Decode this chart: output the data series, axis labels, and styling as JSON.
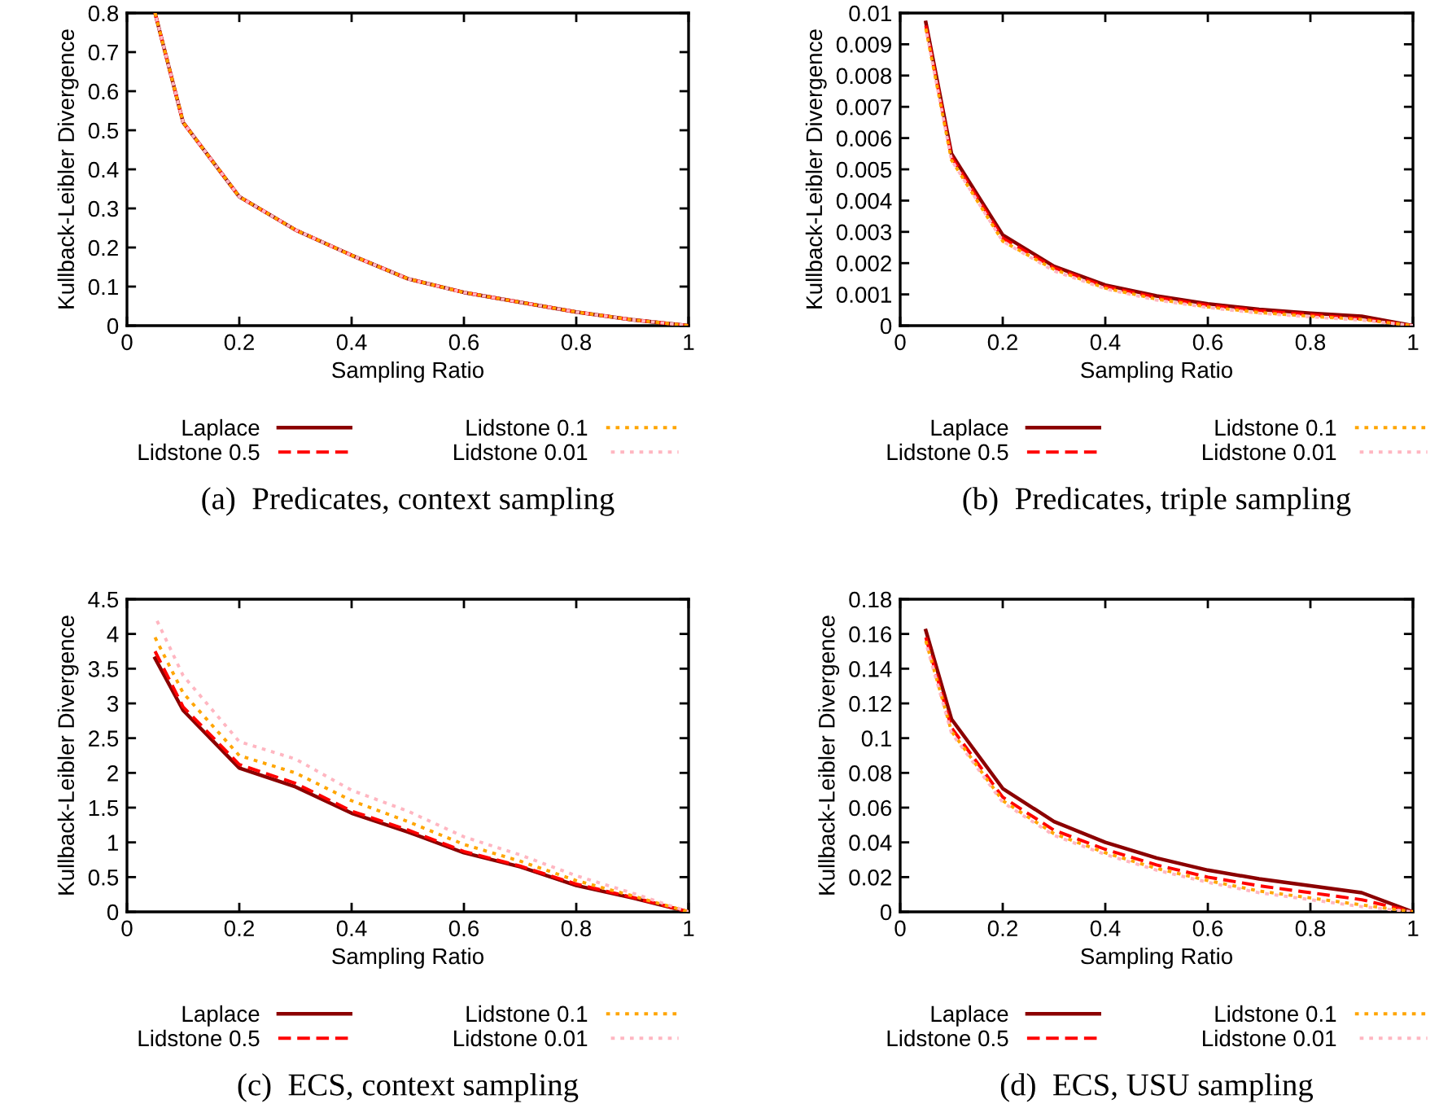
{
  "chart_data": [
    {
      "type": "line",
      "title": "(a)  Predicates, context sampling",
      "xlabel": "Sampling Ratio",
      "ylabel": "Kullback-Leibler Divergence",
      "x": [
        0.05,
        0.1,
        0.2,
        0.3,
        0.4,
        0.5,
        0.6,
        0.7,
        0.8,
        0.9,
        1
      ],
      "xlim": [
        0,
        1
      ],
      "xticks": [
        0,
        0.2,
        0.4,
        0.6,
        0.8,
        1
      ],
      "ylim": [
        0,
        0.8
      ],
      "yticks": [
        0,
        0.1,
        0.2,
        0.3,
        0.4,
        0.5,
        0.6,
        0.7,
        0.8
      ],
      "grid": false,
      "legend": "bottom",
      "series": [
        {
          "name": "Laplace",
          "color": "#8b0000",
          "line_style": "solid",
          "values": [
            0.8,
            0.52,
            0.33,
            0.245,
            0.18,
            0.12,
            0.085,
            0.06,
            0.035,
            0.015,
            0
          ]
        },
        {
          "name": "Lidstone 0.5",
          "color": "#ff0000",
          "line_style": "dashed",
          "values": [
            0.8,
            0.52,
            0.33,
            0.245,
            0.18,
            0.12,
            0.085,
            0.06,
            0.035,
            0.015,
            0
          ]
        },
        {
          "name": "Lidstone 0.1",
          "color": "#ffa500",
          "line_style": "dotted",
          "values": [
            0.8,
            0.52,
            0.33,
            0.245,
            0.18,
            0.12,
            0.085,
            0.06,
            0.035,
            0.015,
            0
          ]
        },
        {
          "name": "Lidstone 0.01",
          "color": "#ffb6c1",
          "line_style": "dotted",
          "values": [
            0.8,
            0.52,
            0.33,
            0.245,
            0.18,
            0.12,
            0.085,
            0.06,
            0.035,
            0.015,
            0
          ]
        }
      ]
    },
    {
      "type": "line",
      "title": "(b)  Predicates, triple sampling",
      "xlabel": "Sampling Ratio",
      "ylabel": "Kullback-Leibler Divergence",
      "x": [
        0.05,
        0.1,
        0.2,
        0.3,
        0.4,
        0.5,
        0.6,
        0.7,
        0.8,
        0.9,
        1
      ],
      "xlim": [
        0,
        1
      ],
      "xticks": [
        0,
        0.2,
        0.4,
        0.6,
        0.8,
        1
      ],
      "ylim": [
        0,
        0.01
      ],
      "yticks": [
        0,
        0.001,
        0.002,
        0.003,
        0.004,
        0.005,
        0.006,
        0.007,
        0.008,
        0.009,
        0.01
      ],
      "grid": false,
      "legend": "bottom",
      "series": [
        {
          "name": "Laplace",
          "color": "#8b0000",
          "line_style": "solid",
          "values": [
            0.0097,
            0.0055,
            0.0029,
            0.0019,
            0.0013,
            0.00095,
            0.0007,
            0.00052,
            0.0004,
            0.0003,
            0
          ]
        },
        {
          "name": "Lidstone 0.5",
          "color": "#ff0000",
          "line_style": "dashed",
          "values": [
            0.0096,
            0.0054,
            0.0028,
            0.00185,
            0.00125,
            0.0009,
            0.00065,
            0.00048,
            0.00035,
            0.00022,
            0
          ]
        },
        {
          "name": "Lidstone 0.1",
          "color": "#ffa500",
          "line_style": "dotted",
          "values": [
            0.0095,
            0.0053,
            0.0027,
            0.0018,
            0.0012,
            0.00085,
            0.0006,
            0.00042,
            0.0003,
            0.0002,
            0
          ]
        },
        {
          "name": "Lidstone 0.01",
          "color": "#ffb6c1",
          "line_style": "dotted",
          "values": [
            0.0095,
            0.0053,
            0.0027,
            0.00175,
            0.00118,
            0.00082,
            0.00058,
            0.0004,
            0.00028,
            0.00018,
            0
          ]
        }
      ]
    },
    {
      "type": "line",
      "title": "(c)  ECS, context sampling",
      "xlabel": "Sampling Ratio",
      "ylabel": "Kullback-Leibler Divergence",
      "x": [
        0.05,
        0.1,
        0.2,
        0.3,
        0.4,
        0.5,
        0.6,
        0.7,
        0.8,
        0.9,
        1
      ],
      "xlim": [
        0,
        1
      ],
      "xticks": [
        0,
        0.2,
        0.4,
        0.6,
        0.8,
        1
      ],
      "ylim": [
        0,
        4.5
      ],
      "yticks": [
        0,
        0.5,
        1,
        1.5,
        2,
        2.5,
        3,
        3.5,
        4,
        4.5
      ],
      "grid": false,
      "legend": "bottom",
      "series": [
        {
          "name": "Laplace",
          "color": "#8b0000",
          "line_style": "solid",
          "values": [
            3.65,
            2.9,
            2.07,
            1.8,
            1.42,
            1.15,
            0.85,
            0.65,
            0.38,
            0.2,
            0
          ]
        },
        {
          "name": "Lidstone 0.5",
          "color": "#ff0000",
          "line_style": "dashed",
          "values": [
            3.75,
            2.95,
            2.12,
            1.85,
            1.45,
            1.18,
            0.87,
            0.66,
            0.4,
            0.21,
            0
          ]
        },
        {
          "name": "Lidstone 0.1",
          "color": "#ffa500",
          "line_style": "dotted",
          "values": [
            3.95,
            3.15,
            2.25,
            2.0,
            1.6,
            1.3,
            0.97,
            0.73,
            0.45,
            0.23,
            0
          ]
        },
        {
          "name": "Lidstone 0.01",
          "color": "#ffb6c1",
          "line_style": "dotted",
          "values": [
            4.25,
            3.4,
            2.45,
            2.2,
            1.75,
            1.45,
            1.08,
            0.82,
            0.52,
            0.27,
            0
          ]
        }
      ]
    },
    {
      "type": "line",
      "title": "(d)  ECS, USU sampling",
      "xlabel": "Sampling Ratio",
      "ylabel": "Kullback-Leibler Divergence",
      "x": [
        0.05,
        0.1,
        0.2,
        0.3,
        0.4,
        0.5,
        0.6,
        0.7,
        0.8,
        0.9,
        1
      ],
      "xlim": [
        0,
        1
      ],
      "xticks": [
        0,
        0.2,
        0.4,
        0.6,
        0.8,
        1
      ],
      "ylim": [
        0,
        0.18
      ],
      "yticks": [
        0,
        0.02,
        0.04,
        0.06,
        0.08,
        0.1,
        0.12,
        0.14,
        0.16,
        0.18
      ],
      "grid": false,
      "legend": "bottom",
      "series": [
        {
          "name": "Laplace",
          "color": "#8b0000",
          "line_style": "solid",
          "values": [
            0.162,
            0.111,
            0.071,
            0.052,
            0.04,
            0.031,
            0.024,
            0.019,
            0.015,
            0.011,
            0
          ]
        },
        {
          "name": "Lidstone 0.5",
          "color": "#ff0000",
          "line_style": "dashed",
          "values": [
            0.158,
            0.106,
            0.066,
            0.047,
            0.036,
            0.027,
            0.02,
            0.015,
            0.011,
            0.007,
            0
          ]
        },
        {
          "name": "Lidstone 0.1",
          "color": "#ffa500",
          "line_style": "dotted",
          "values": [
            0.156,
            0.104,
            0.064,
            0.045,
            0.034,
            0.025,
            0.018,
            0.012,
            0.008,
            0.004,
            0
          ]
        },
        {
          "name": "Lidstone 0.01",
          "color": "#ffb6c1",
          "line_style": "dotted",
          "values": [
            0.155,
            0.103,
            0.063,
            0.044,
            0.033,
            0.024,
            0.017,
            0.011,
            0.007,
            0.003,
            0
          ]
        }
      ]
    }
  ]
}
